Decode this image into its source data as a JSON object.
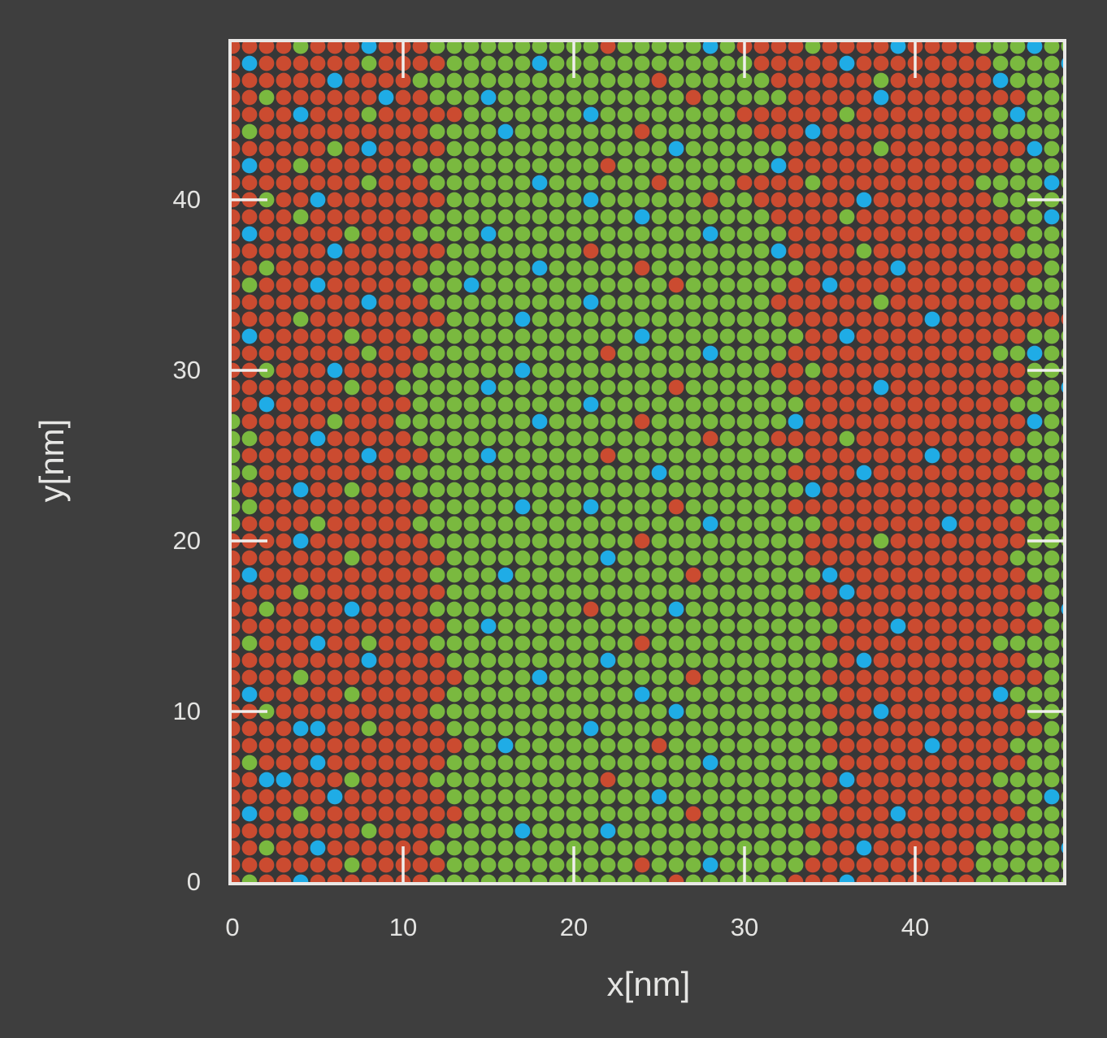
{
  "figure": {
    "background_color": "#3e3e3e",
    "plot_background_color": "#373737",
    "frame_color": "#e9e8e6",
    "tick_color": "#efeeec",
    "text_color": "#e6e6e4"
  },
  "chart_data": {
    "type": "scatter",
    "subtype": "lattice-dot-grid",
    "title": "",
    "xlabel": "x[nm]",
    "ylabel": "y[nm]",
    "xlim": [
      0,
      49
    ],
    "ylim": [
      0,
      49
    ],
    "grid": "off",
    "legend": "none",
    "x_tick_labels": [
      "0",
      "10",
      "20",
      "30",
      "40"
    ],
    "y_tick_labels": [
      "0",
      "10",
      "20",
      "30",
      "40"
    ],
    "x_tick_values": [
      0,
      10,
      20,
      30,
      40
    ],
    "y_tick_values": [
      0,
      10,
      20,
      30,
      40
    ],
    "ticks_drawn_inward_values": [
      10,
      20,
      30,
      40
    ],
    "lattice": {
      "columns": 50,
      "rows": 50,
      "spacing_nm": 1,
      "spacing_px": 21,
      "dot_radius_px": 9.4
    },
    "species": {
      "R": {
        "name": "species-red",
        "color": "#cb4b30"
      },
      "G": {
        "name": "species-green",
        "color": "#7ab93f"
      },
      "B": {
        "name": "species-blue",
        "color": "#1facе6"
      }
    },
    "species_colors": {
      "R": "#cb4b30",
      "G": "#7ab93f",
      "B": "#1face6"
    },
    "grid_rows_top_to_bottom": [
      "RRRRGRRRBRRRGGGGGGGGGGRGGGGGBGRRRRGRRRRBRRRRGGGBGG",
      "RBRRRRRRGRRRRGGGGGBGGGGGGGGGGGGRRRRRBRRRRRRRRGGGGB",
      "RRRRRRBRRRRGGGGGGGGGGGGGGRGGGGGGRRRRRRGRRRRRRBGGGG",
      "RRGRRRRRRBRRGGGBGGGGGGGGGGGRGGGGGRRRRRBRRRRRRRRGGG",
      "RRRRBRRRGRRRRRGGGGGGGBGGGGGGGGRRRRRRGRRRRRRRRGBGGG",
      "RGRRRRRRRRRRGGGGBGGGGGGGRGGGGGGRRRBRRRRRRRRRRGGGGG",
      "RRRRRRGRBRRRRGGGGGGGGGGGGGBGGGGGGRRRRRGRRRRRRRRBGG",
      "RBRRGRRRRRRGGGGGGGGGGGRGGGGGGGGGBRRRRRRRRRRRRRGGGG",
      "RRRRRRRRGRRRGGGGGGBGGGGGGRGGGGRRRRGRRRRRRRRRGGGGBG",
      "RRGRRBRRRRRRRGGGGGGGGBGGGGGGRGGRRRRRRBRRRRRRRGGGGG",
      "RRRRGRRRRRRRGGGGGGGGGGGGBGGGGGGGRRRRGRRRRRRRRRGGBG",
      "RBRRRRRGRRRGGGGBGGGGGGGGGGGGBGGGGRRRRRRRRRRRRRRGGG",
      "RRRRRRBRRRRRRGGGGGGGGRGGGGGGGGGGBRRRRGRRRRRRRRGGGG",
      "RRGRRRRRRRRRGGGGGGBGGGGGRGGGGGGGGGRRRRRBRRRRRRRRGG",
      "RGRRRBRRRRRGGGBGGGGGGGGGGGRGGGGGGRRBRRRRRRRRRRRGGG",
      "RRRRRRRRBRRRGGGGGGGGGBGGGGGGGGGGRRRRRRGRRRRRRRGGGG",
      "RRRRGRRRRRRRRGGGGBGGGGGGGGGGGGGGGRRRRRRRRBRRRRRRRR",
      "RBRRRRRGRRRGGGGGGGGGGGGGBGGGGGGGGGRRBRRRRRRRRRRGGG",
      "RRRRRRRRGRRRGGGGGGGGGGRGGGGGBGGGGRRRRRRRRRRRRGGBGG",
      "RRGRRRBRRRRGGGGGGBGGGGGGGGGGGGGGRRGRRRRRRRRRRRRGGG",
      "RRRRRRRGRRGGGGGBGGGGGGGGGGRGGGGGGRRRRRBRRRRRRRRGGB",
      "RRBRRRRRRRRGGGGGGGGGGBGGGGGGGGGGGGRRRRRRRRRRRRGGGG",
      "GRRRRRGRRRGGGGGGGGBGGGGGRGGGGGGGGBRRRRRRRRRRRRRBGG",
      "GGRRRBRRRRRGGGGGGGGGGGGGGGGGRGGGRRRRGRRRRRRRRRRGGG",
      "GRRRRRRRBRRRGGGBGGGGGGRGGGGGGGGGGGRRRRRRRBRRRRGGGG",
      "GGRRRRRRRRGGGGGGGGGGGGGGGBGGGGGGGRRRRBRRRRRRRRRGGG",
      "GRRRBRRGRRRGGGGGGGGGGGGGGGGGGGGGGGBRRRRRRRRRRRRRGG",
      "GGRRRRRRRRRRGGGGGBGGGBGGGGRGGGGGGRRRRRRRRRRRRRGGGG",
      "GRRRRGRRRRRGGGGGGGGGGGGGGGGGBGGGGGGRRRRRRRBRRRRGGG",
      "RRRRBRRRRRRRGGGGGGGGGGGGRGGGGGGGGGRRRRGRRRRRRRRGGG",
      "RRRRRRRGRRRRRGGGGGGGGGBGGGGGGGGGGGRRRRRRRRRRRRGGGG",
      "RBRRRRRRRRRRGGGGBGGGGGGGGGGRGGGGGGGBRRRRRRRRRRRGGG",
      "RRRRGRRRRRRRRGGGGGGGGGGGGGGGGGGGGGRRBRRRRRRRRRRRGG",
      "RRGRRRRBRRRRGGGGGGGGGRGGGGBGGGGGGGGRRRRRRRRRRRRGGB",
      "RRRRRRRRRRRRRGGBGGGGGGGGGGGGGGGGGGGGRRRBRRRRRRRRGG",
      "RGRRRBRRGRRRGGGGGGGGGGGGRGGGGGGGGGGRRRRRRRRRRGGGGG",
      "RRRRRRRRBRRRRGGGGGGGGGBGGGGGGGGGGGGGRBRRRRRRRRRGGG",
      "RRRRGRRRRRRRRRGGGGBGGGGGGGGRGGGGGGGRRRRRRRRRRRRRGG",
      "RBRRRRRGRRRRRGGGGGGGGGGGBGGGGGGGGGGGRRRRRRRRRBGGGG",
      "RRGRRRRRRRRRGGGGGGGGGGGGGGBGGGGGGGGRRRBRRRRRRRRGGG",
      "RRRRBBRRGRRRRGGGGGGGGBGGGGGGGGGGGGGGRRRRRRRRRRRRGG",
      "RRRRRRRRRRRRRRGGBGGGGGGGGRGGGGGGGGGRRRRRRBRRRRGGGG",
      "RGRRRBRRRRRRRGGGGGGGGGGGGGGGBGGGGGGGRRRRRRRRRRRGGG",
      "RRBBRRRGRRRRGGGGGGGGGGRGGGGGGGGGGGGRBRRRRRRRRGGGGG",
      "RRRRRRBRRRRRRGGGGGGGGGGGGBGGGGGGGGGGRRRRRRRRRRGGBG",
      "RBRRGRRRRRRRRRGGGGGGGGGGGGGRGGGGGGGRRRRBRRRRRRRGGG",
      "RRRRRRRRGRRRRGGGGBGGGGBGGGGGGGGGGGRRRRRRRRRRRGGGGG",
      "RRGRRBRRRRRRGGGGGGGGGGGGGGGGGGGGGGGRRBRRRRRRGGGGGB",
      "RRRRRRRGRRRRRGGGGGGGGGGGRGGGBGGGGGRRRRRRRRRRGGGGGG",
      "RGRRBRRRRRRRGGGGGGGGGGGGGGRGGGGGGRRRBRRRRRRRGGGGGG"
    ]
  }
}
